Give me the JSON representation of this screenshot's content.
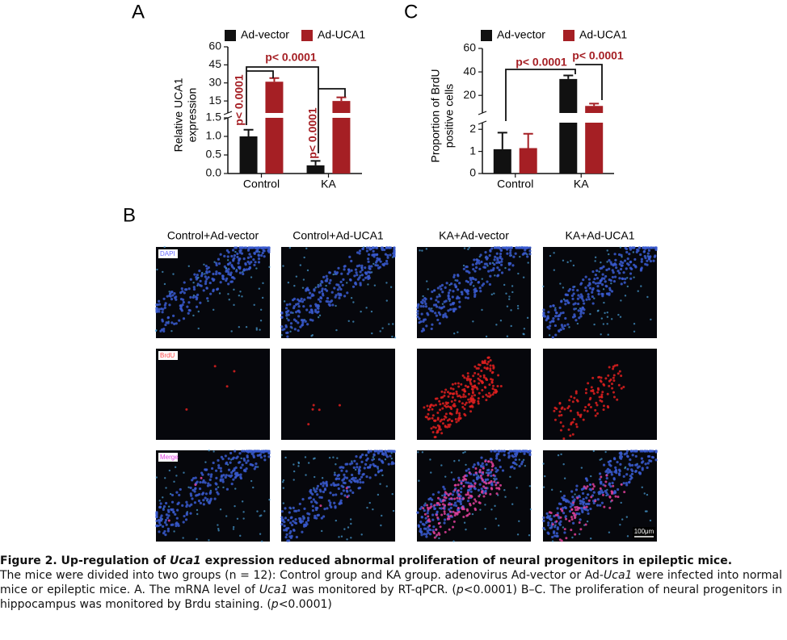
{
  "panel_labels": {
    "a": "A",
    "b": "B",
    "c": "C"
  },
  "chart_data": [
    {
      "type": "bar",
      "ylabel": [
        "Relative UCA1",
        "expression"
      ],
      "categories": [
        "Control",
        "KA"
      ],
      "series": [
        {
          "name": "Ad-vector",
          "color": "#111111",
          "values": [
            1.0,
            0.22
          ],
          "errors": [
            0.18,
            0.12
          ]
        },
        {
          "name": "Ad-UCA1",
          "color": "#a51f24",
          "values": [
            31,
            15
          ],
          "errors": [
            3,
            3
          ]
        }
      ],
      "ylim": [
        0,
        60
      ],
      "axis_break": [
        1.5,
        5
      ],
      "yticks": [
        {
          "value": 0,
          "label": "0.0"
        },
        0.5,
        {
          "value": 1,
          "label": "1.0"
        },
        1.5,
        15,
        30,
        45,
        60
      ],
      "annotations": [
        "p< 0.0001",
        "p< 0.0001",
        "p< 0.0001"
      ]
    },
    {
      "type": "bar",
      "ylabel": [
        "Proportion of BrdU",
        "positive cells"
      ],
      "categories": [
        "Control",
        "KA"
      ],
      "series": [
        {
          "name": "Ad-vector",
          "color": "#111111",
          "values": [
            1.1,
            34
          ],
          "errors": [
            0.75,
            3
          ]
        },
        {
          "name": "Ad-UCA1",
          "color": "#a51f24",
          "values": [
            1.15,
            11
          ],
          "errors": [
            0.65,
            2
          ]
        }
      ],
      "ylim": [
        0,
        60
      ],
      "axis_break": [
        2.3,
        5
      ],
      "yticks": [
        0,
        1,
        2,
        20,
        40,
        60
      ],
      "annotations": [
        "p< 0.0001",
        "p< 0.0001"
      ]
    }
  ],
  "panel_b": {
    "columns": [
      "Control+Ad-vector",
      "Control+Ad-UCA1",
      "KA+Ad-vector",
      "KA+Ad-UCA1"
    ],
    "rows": [
      "DAPI",
      "BrdU",
      "Merge"
    ],
    "scale_bar": "100μm"
  },
  "caption": {
    "title": [
      "Figure 2. Up-regulation of ",
      "Uca1",
      " expression reduced abnormal proliferation of neural progenitors in epileptic mice."
    ],
    "body": [
      "The mice were divided into two groups (n = 12): Control group and KA group. adenovirus Ad-vector or Ad-",
      "Uca1",
      " were infected into normal mice or epileptic mice. A. The mRNA level of ",
      "Uca1",
      " was monitored by RT-qPCR. (",
      "p",
      "<0.0001) B–C. The proliferation of neural progenitors in hippocampus was monitored by Brdu staining. (",
      "p",
      "<0.0001)"
    ]
  }
}
